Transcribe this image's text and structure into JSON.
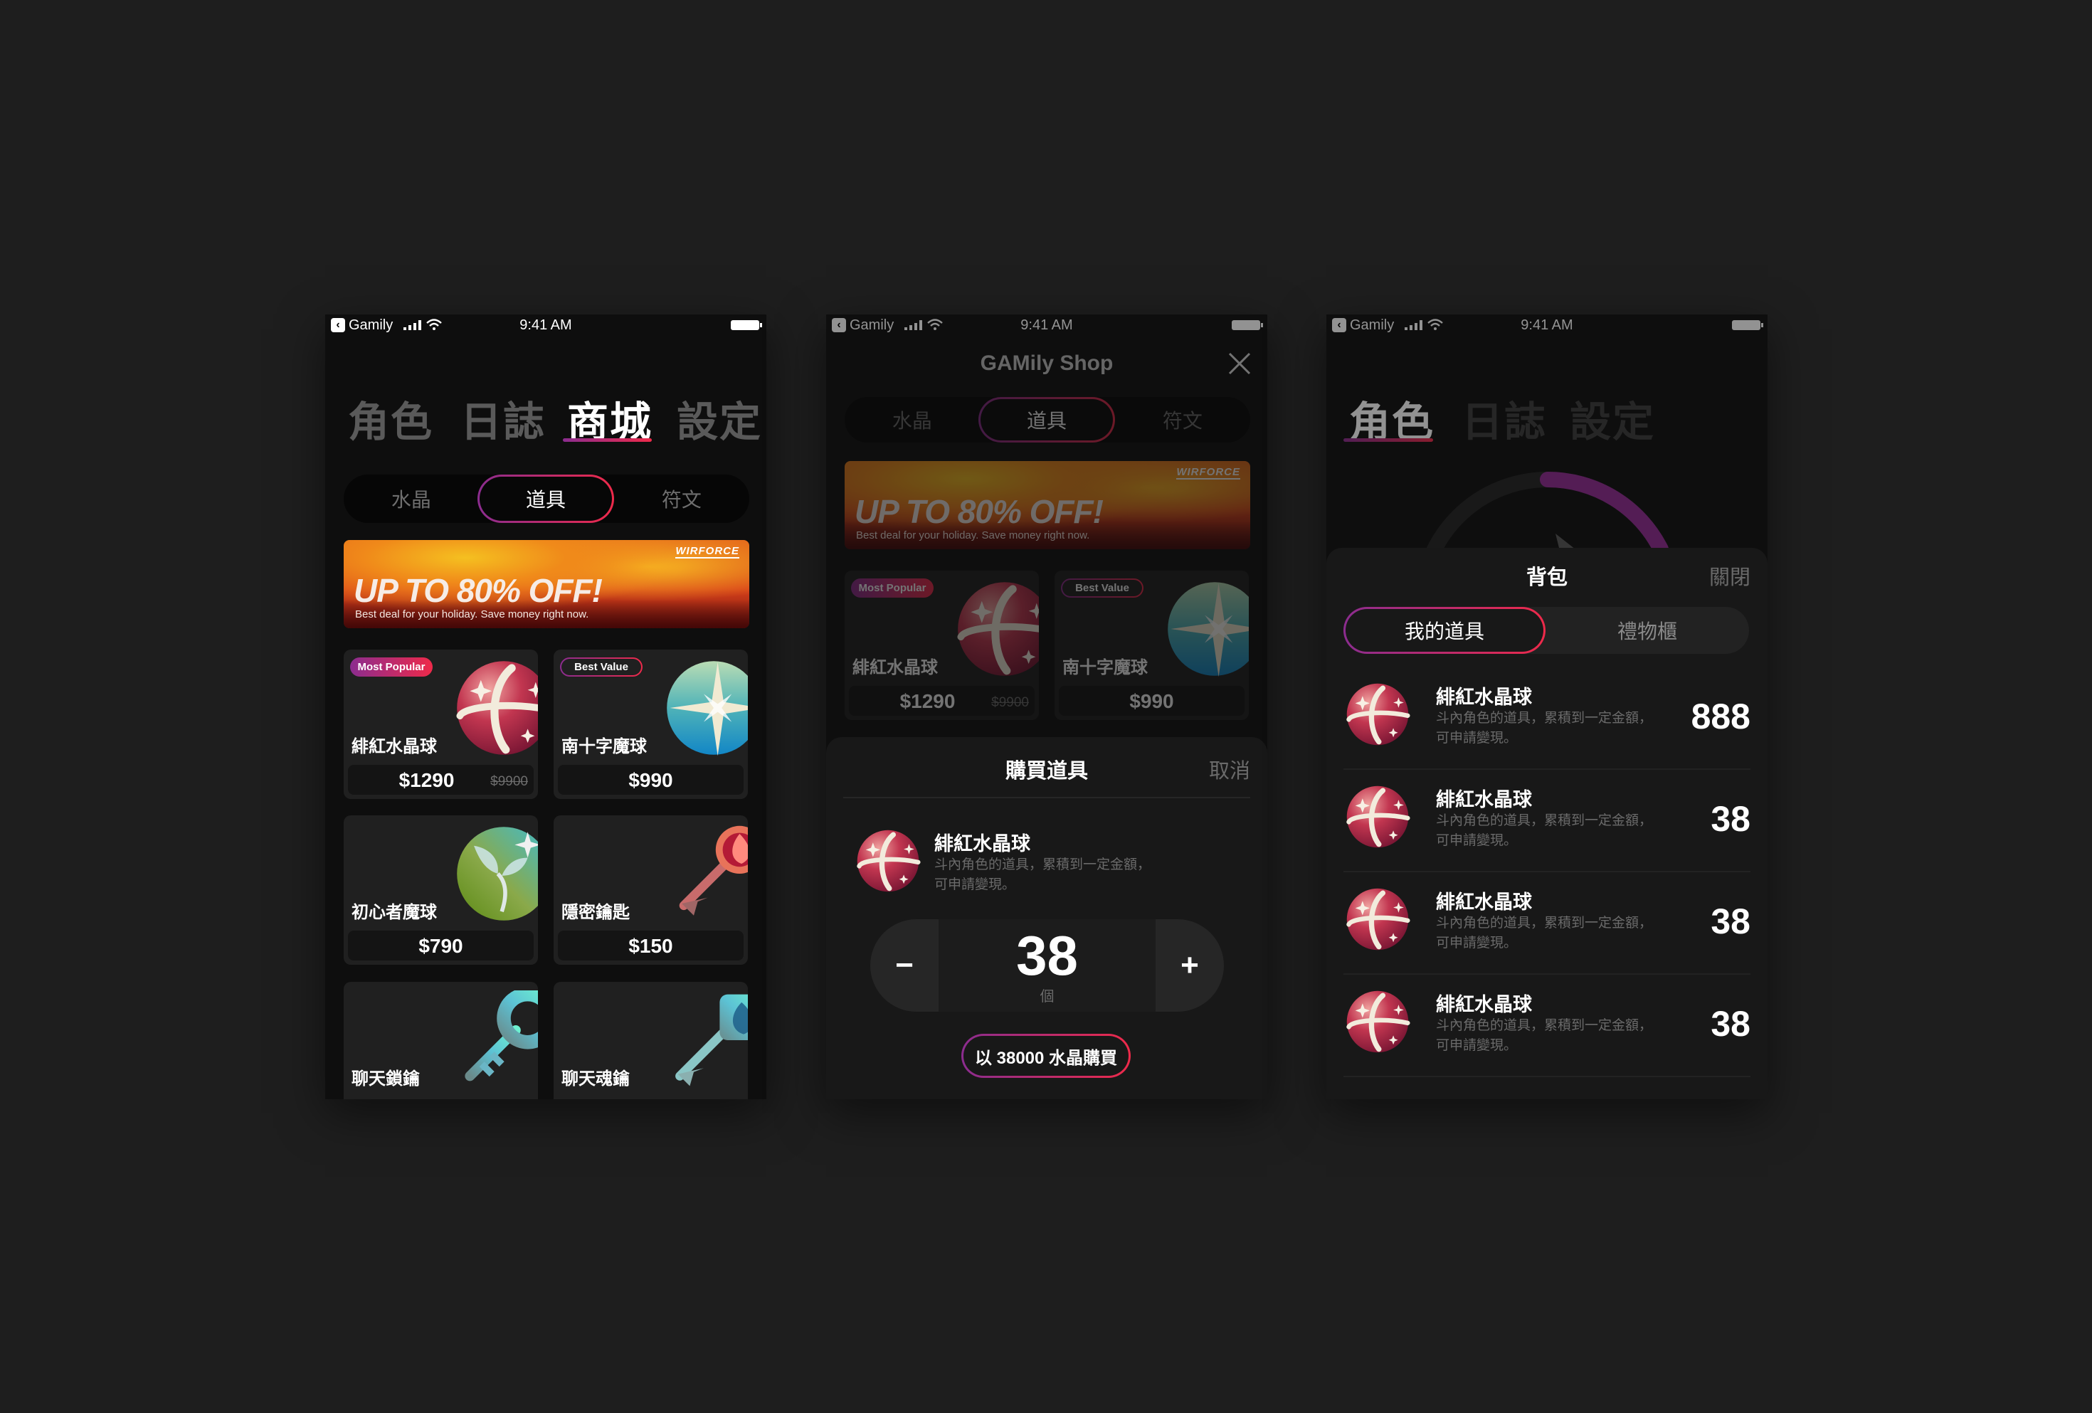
{
  "status_bar": {
    "back_app": "Gamily",
    "time": "9:41 AM"
  },
  "colors": {
    "accent_start": "#8b2c8f",
    "accent_end": "#ee2a4a",
    "background": "#1e1e1e",
    "screen": "#0e0e0e",
    "card": "#202020"
  },
  "shop": {
    "main_tabs": [
      "角色",
      "日誌",
      "商城",
      "設定"
    ],
    "active_tab": "商城",
    "segments": [
      "水晶",
      "道具",
      "符文"
    ],
    "active_segment": "道具",
    "banner": {
      "headline": "UP TO 80% OFF!",
      "subtitle": "Best deal for your holiday. Save money right now.",
      "logo": "WIRFORCE"
    },
    "items": [
      {
        "name": "緋紅水晶球",
        "price": "$1290",
        "original_price": "$9900",
        "badge": "Most Popular",
        "icon": "crimson-orb-icon"
      },
      {
        "name": "南十字魔球",
        "price": "$990",
        "badge": "Best Value",
        "icon": "star-orb-icon"
      },
      {
        "name": "初心者魔球",
        "price": "$790",
        "icon": "sprout-orb-icon"
      },
      {
        "name": "隱密鑰匙",
        "price": "$150",
        "icon": "fire-key-icon"
      },
      {
        "name": "聊天鎖鑰",
        "icon": "ring-key-icon"
      },
      {
        "name": "聊天魂鑰",
        "icon": "flame-square-key-icon"
      }
    ]
  },
  "shop_modal": {
    "title": "GAMily Shop",
    "sheet": {
      "title": "購買道具",
      "cancel": "取消",
      "item": {
        "name": "緋紅水晶球",
        "description_lines": [
          "斗內角色的道具，累積到一定金額，",
          "可申請變現。"
        ]
      },
      "quantity": "38",
      "unit": "個",
      "decrement": "−",
      "increment": "+",
      "buy_label": "以 38000 水晶購買"
    }
  },
  "backpack": {
    "main_tabs": [
      "角色",
      "日誌",
      "設定"
    ],
    "active_tab": "角色",
    "sheet": {
      "title": "背包",
      "close": "關閉",
      "tabs": [
        "我的道具",
        "禮物櫃"
      ],
      "active_tab": "我的道具",
      "items": [
        {
          "name": "緋紅水晶球",
          "description_lines": [
            "斗內角色的道具，累積到一定金額，",
            "可申請變現。"
          ],
          "count": "888"
        },
        {
          "name": "緋紅水晶球",
          "description_lines": [
            "斗內角色的道具，累積到一定金額，",
            "可申請變現。"
          ],
          "count": "38"
        },
        {
          "name": "緋紅水晶球",
          "description_lines": [
            "斗內角色的道具，累積到一定金額，",
            "可申請變現。"
          ],
          "count": "38"
        },
        {
          "name": "緋紅水晶球",
          "description_lines": [
            "斗內角色的道具，累積到一定金額，",
            "可申請變現。"
          ],
          "count": "38"
        }
      ]
    }
  }
}
